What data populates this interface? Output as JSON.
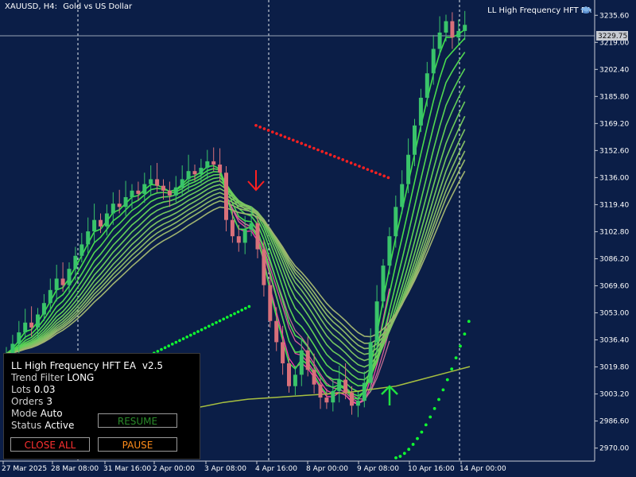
{
  "header": {
    "symbol": "XAUUSD, H4:",
    "description": "Gold vs US Dollar"
  },
  "ea_label": "LL High Frequency HFT EA",
  "price_axis": {
    "ticks": [
      "3235.60",
      "3219.00",
      "3202.40",
      "3185.80",
      "3169.20",
      "3152.60",
      "3136.00",
      "3119.40",
      "3102.80",
      "3086.20",
      "3069.60",
      "3053.00",
      "3036.40",
      "3019.80",
      "3003.20",
      "2986.60",
      "2970.00"
    ],
    "current_price": "3229.75"
  },
  "time_axis": {
    "ticks": [
      "27 Mar 2025",
      "28 Mar 08:00",
      "31 Mar 16:00",
      "2 Apr 00:00",
      "3 Apr 08:00",
      "4 Apr 16:00",
      "8 Apr 00:00",
      "9 Apr 08:00",
      "10 Apr 16:00",
      "14 Apr 00:00"
    ]
  },
  "colors": {
    "background": "#0b1e47",
    "bull": "#39c46a",
    "bear": "#d9707a",
    "ribbon_upper": "#7ee05a",
    "ribbon_lower": "#ff3fa8",
    "sell_arrow": "#ff2020",
    "buy_arrow": "#20e040",
    "dots_red": "#ff2020",
    "dots_green": "#10ff30",
    "slow_ma": "#a8c040"
  },
  "panel": {
    "title": "LL High Frequency HFT EA",
    "version": "v2.5",
    "trend_filter_label": "Trend Filter",
    "trend_filter_value": "LONG",
    "lots_label": "Lots",
    "lots_value": "0.03",
    "orders_label": "Orders",
    "orders_value": "3",
    "mode_label": "Mode",
    "mode_value": "Auto",
    "status_label": "Status",
    "status_value": "Active",
    "buttons": {
      "resume": "RESUME",
      "close_all": "CLOSE ALL",
      "pause": "PAUSE"
    }
  },
  "icons": {
    "ea_icon": "graduation-cap-icon",
    "sell_signal": "arrow-down-icon",
    "buy_signal": "arrow-up-icon"
  },
  "chart_data": {
    "type": "candlestick",
    "ylim": [
      2962,
      3245
    ],
    "ma_stub": [
      2995,
      2998,
      3000,
      3001,
      3002,
      3003,
      3004,
      3006,
      3008,
      3012,
      3016,
      3020
    ],
    "closes": [
      3028,
      3034,
      3041,
      3047,
      3044,
      3052,
      3059,
      3067,
      3074,
      3070,
      3080,
      3088,
      3095,
      3103,
      3110,
      3106,
      3114,
      3120,
      3118,
      3124,
      3128,
      3126,
      3132,
      3135,
      3131,
      3128,
      3125,
      3130,
      3135,
      3140,
      3138,
      3142,
      3146,
      3144,
      3139,
      3110,
      3100,
      3096,
      3104,
      3108,
      3092,
      3070,
      3048,
      3035,
      3022,
      3008,
      3015,
      3030,
      3018,
      3009,
      3001,
      2998,
      3005,
      3012,
      3004,
      2996,
      2999,
      3010,
      3035,
      3060,
      3082,
      3100,
      3118,
      3132,
      3150,
      3168,
      3185,
      3200,
      3215,
      3225,
      3232,
      3222,
      3226,
      3229.75
    ]
  }
}
